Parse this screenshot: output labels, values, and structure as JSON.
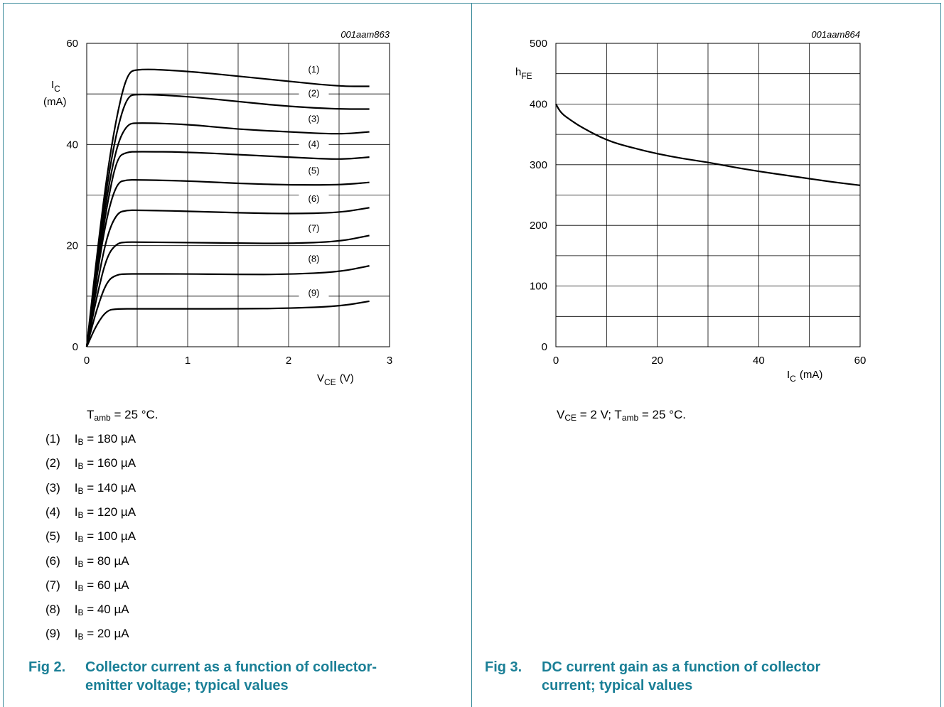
{
  "left": {
    "code": "001aam863",
    "ylabel": "I",
    "ylabel_sub": "C",
    "ylabel_unit": "(mA)",
    "xlabel": "V",
    "xlabel_sub": "CE",
    "xlabel_unit": "(V)",
    "conditions_pre": "T",
    "conditions_sub": "amb",
    "conditions_post": " = 25 °C.",
    "legend": [
      {
        "num": "(1)",
        "pre": "I",
        "sub": "B",
        "post": " = 180 µA"
      },
      {
        "num": "(2)",
        "pre": "I",
        "sub": "B",
        "post": " = 160 µA"
      },
      {
        "num": "(3)",
        "pre": "I",
        "sub": "B",
        "post": " = 140 µA"
      },
      {
        "num": "(4)",
        "pre": "I",
        "sub": "B",
        "post": " = 120 µA"
      },
      {
        "num": "(5)",
        "pre": "I",
        "sub": "B",
        "post": " = 100 µA"
      },
      {
        "num": "(6)",
        "pre": "I",
        "sub": "B",
        "post": " = 80 µA"
      },
      {
        "num": "(7)",
        "pre": "I",
        "sub": "B",
        "post": " = 60 µA"
      },
      {
        "num": "(8)",
        "pre": "I",
        "sub": "B",
        "post": " = 40 µA"
      },
      {
        "num": "(9)",
        "pre": "I",
        "sub": "B",
        "post": " = 20 µA"
      }
    ],
    "fig_num": "Fig 2.",
    "fig_title": "Collector current as a function of collector-emitter voltage; typical values"
  },
  "right": {
    "code": "001aam864",
    "ylabel": "h",
    "ylabel_sub": "FE",
    "xlabel": "I",
    "xlabel_sub": "C",
    "xlabel_unit": "(mA)",
    "cond1_pre": "V",
    "cond1_sub": "CE",
    "cond1_post": " = 2 V; T",
    "cond2_sub": "amb",
    "cond2_post": " = 25 °C.",
    "fig_num": "Fig 3.",
    "fig_title": "DC current gain as a function of collector current; typical values"
  },
  "chart_data": [
    {
      "type": "line",
      "xlim": [
        0,
        3
      ],
      "ylim": [
        0,
        60
      ],
      "x_ticks": [
        0,
        1,
        2,
        3
      ],
      "y_ticks": [
        0,
        20,
        40,
        60
      ],
      "grid": true,
      "series": [
        {
          "name": "(1)",
          "points": [
            [
              0,
              0
            ],
            [
              0.1,
              18
            ],
            [
              0.2,
              34
            ],
            [
              0.3,
              46
            ],
            [
              0.4,
              54
            ],
            [
              0.5,
              55
            ],
            [
              1,
              54.5
            ],
            [
              1.5,
              53.5
            ],
            [
              2,
              52.5
            ],
            [
              2.5,
              51.5
            ],
            [
              2.8,
              51.5
            ]
          ]
        },
        {
          "name": "(2)",
          "points": [
            [
              0,
              0
            ],
            [
              0.1,
              17
            ],
            [
              0.2,
              32
            ],
            [
              0.3,
              43
            ],
            [
              0.4,
              49.5
            ],
            [
              0.5,
              50
            ],
            [
              1,
              49.5
            ],
            [
              1.5,
              48.5
            ],
            [
              2,
              47.5
            ],
            [
              2.5,
              47
            ],
            [
              2.8,
              47
            ]
          ]
        },
        {
          "name": "(3)",
          "points": [
            [
              0,
              0
            ],
            [
              0.1,
              16
            ],
            [
              0.2,
              30
            ],
            [
              0.3,
              40
            ],
            [
              0.4,
              44
            ],
            [
              0.5,
              44.3
            ],
            [
              1,
              44
            ],
            [
              1.5,
              43
            ],
            [
              2,
              42.5
            ],
            [
              2.5,
              42
            ],
            [
              2.8,
              42.5
            ]
          ]
        },
        {
          "name": "(4)",
          "points": [
            [
              0,
              0
            ],
            [
              0.1,
              15
            ],
            [
              0.2,
              28
            ],
            [
              0.3,
              37.5
            ],
            [
              0.4,
              38.5
            ],
            [
              0.5,
              38.6
            ],
            [
              1,
              38.5
            ],
            [
              1.5,
              38
            ],
            [
              2,
              37.5
            ],
            [
              2.5,
              37
            ],
            [
              2.8,
              37.5
            ]
          ]
        },
        {
          "name": "(5)",
          "points": [
            [
              0,
              0
            ],
            [
              0.1,
              14
            ],
            [
              0.2,
              26
            ],
            [
              0.3,
              32.5
            ],
            [
              0.4,
              33
            ],
            [
              0.5,
              33
            ],
            [
              1,
              32.8
            ],
            [
              1.5,
              32.3
            ],
            [
              2,
              32
            ],
            [
              2.5,
              32
            ],
            [
              2.8,
              32.5
            ]
          ]
        },
        {
          "name": "(6)",
          "points": [
            [
              0,
              0
            ],
            [
              0.1,
              12
            ],
            [
              0.2,
              22
            ],
            [
              0.3,
              26.5
            ],
            [
              0.4,
              27
            ],
            [
              0.5,
              27
            ],
            [
              1,
              26.8
            ],
            [
              1.5,
              26.5
            ],
            [
              2,
              26.3
            ],
            [
              2.5,
              26.5
            ],
            [
              2.8,
              27.5
            ]
          ]
        },
        {
          "name": "(7)",
          "points": [
            [
              0,
              0
            ],
            [
              0.1,
              10
            ],
            [
              0.2,
              18
            ],
            [
              0.3,
              20.5
            ],
            [
              0.4,
              20.7
            ],
            [
              0.5,
              20.7
            ],
            [
              1,
              20.6
            ],
            [
              1.5,
              20.5
            ],
            [
              2,
              20.4
            ],
            [
              2.5,
              20.8
            ],
            [
              2.8,
              22
            ]
          ]
        },
        {
          "name": "(8)",
          "points": [
            [
              0,
              0
            ],
            [
              0.1,
              7.5
            ],
            [
              0.2,
              13
            ],
            [
              0.3,
              14.3
            ],
            [
              0.4,
              14.4
            ],
            [
              0.5,
              14.4
            ],
            [
              1,
              14.4
            ],
            [
              1.5,
              14.3
            ],
            [
              2,
              14.3
            ],
            [
              2.5,
              14.8
            ],
            [
              2.8,
              16
            ]
          ]
        },
        {
          "name": "(9)",
          "points": [
            [
              0,
              0
            ],
            [
              0.1,
              4.5
            ],
            [
              0.2,
              7.2
            ],
            [
              0.3,
              7.5
            ],
            [
              0.5,
              7.5
            ],
            [
              1,
              7.5
            ],
            [
              1.5,
              7.5
            ],
            [
              2,
              7.6
            ],
            [
              2.5,
              8
            ],
            [
              2.8,
              9
            ]
          ]
        }
      ]
    },
    {
      "type": "line",
      "xlim": [
        0,
        60
      ],
      "ylim": [
        0,
        500
      ],
      "x_ticks": [
        0,
        20,
        40,
        60
      ],
      "y_ticks": [
        0,
        100,
        200,
        300,
        400,
        500
      ],
      "grid": true,
      "series": [
        {
          "points": [
            [
              0,
              400
            ],
            [
              1,
              385
            ],
            [
              3,
              373
            ],
            [
              5,
              362
            ],
            [
              10,
              340
            ],
            [
              15,
              328
            ],
            [
              20,
              318
            ],
            [
              25,
              310
            ],
            [
              30,
              304
            ],
            [
              35,
              296
            ],
            [
              40,
              289
            ],
            [
              45,
              283
            ],
            [
              50,
              277
            ],
            [
              55,
              271
            ],
            [
              60,
              266
            ]
          ]
        }
      ]
    }
  ]
}
